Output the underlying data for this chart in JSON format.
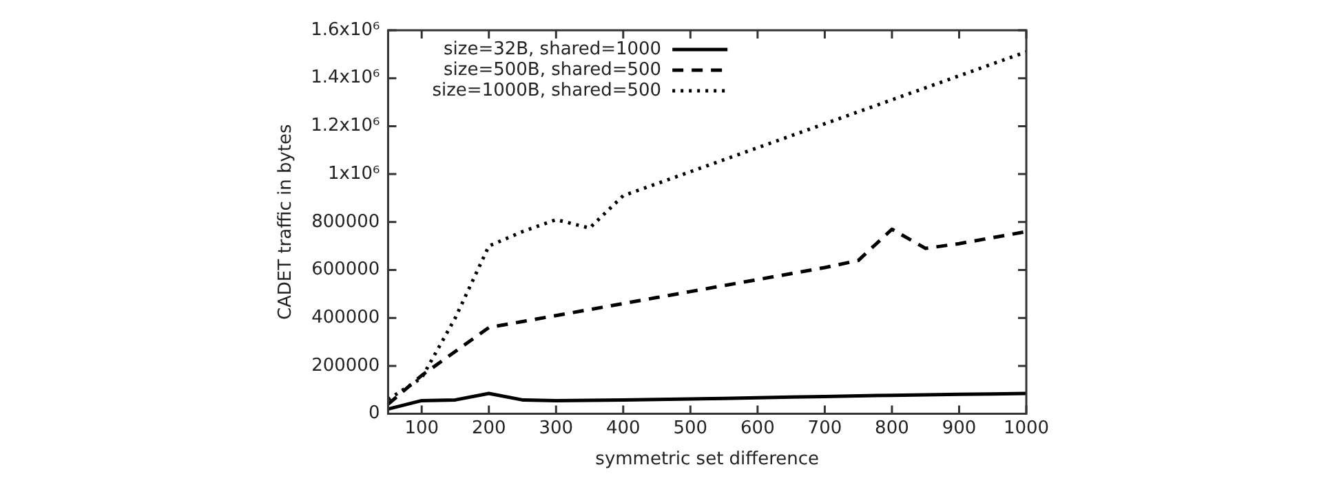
{
  "chart_data": {
    "type": "line",
    "xlabel": "symmetric set difference",
    "ylabel": "CADET traffic in bytes",
    "x": [
      50,
      100,
      150,
      200,
      250,
      300,
      350,
      400,
      450,
      500,
      550,
      600,
      650,
      700,
      750,
      800,
      850,
      900,
      950,
      1000
    ],
    "series": [
      {
        "name": "size=32B, shared=1000",
        "color": "#000000",
        "line_style": "solid",
        "values": [
          20000,
          55000,
          58000,
          85000,
          58000,
          55000,
          56000,
          58000,
          60000,
          62000,
          64000,
          67000,
          70000,
          72000,
          75000,
          77000,
          79000,
          81000,
          83000,
          85000
        ]
      },
      {
        "name": "size=500B, shared=500",
        "color": "#000000",
        "line_style": "dashed",
        "values": [
          40000,
          160000,
          260000,
          360000,
          385000,
          410000,
          435000,
          460000,
          485000,
          510000,
          535000,
          560000,
          585000,
          610000,
          640000,
          770000,
          690000,
          710000,
          735000,
          760000
        ]
      },
      {
        "name": "size=1000B, shared=500",
        "color": "#000000",
        "line_style": "dotted",
        "values": [
          60000,
          150000,
          400000,
          700000,
          760000,
          810000,
          775000,
          910000,
          960000,
          1010000,
          1060000,
          1110000,
          1160000,
          1210000,
          1260000,
          1310000,
          1360000,
          1410000,
          1460000,
          1510000
        ]
      }
    ],
    "xlim": [
      50,
      1000
    ],
    "xticks": [
      100,
      200,
      300,
      400,
      500,
      600,
      700,
      800,
      900,
      1000
    ],
    "ylim": [
      0,
      1600000
    ],
    "yticks": [
      0,
      200000,
      400000,
      600000,
      800000,
      {
        "value": 1000000,
        "label": "1x10⁶"
      },
      {
        "value": 1200000,
        "label": "1.2x10⁶"
      },
      {
        "value": 1400000,
        "label": "1.4x10⁶"
      },
      {
        "value": 1600000,
        "label": "1.6x10⁶"
      }
    ],
    "grid": false,
    "legend": "top left",
    "marker": "none"
  }
}
